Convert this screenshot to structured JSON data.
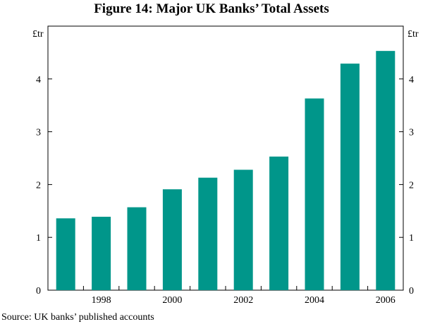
{
  "title": "Figure 14: Major UK Banks’ Total Assets",
  "source": "Source: UK banks’ published accounts",
  "colors": {
    "bar": "#00968a",
    "axis": "#000000"
  },
  "chart_data": {
    "type": "bar",
    "title": "Figure 14: Major UK Banks’ Total Assets",
    "ylabel_left": "£tr",
    "ylabel_right": "£tr",
    "ylim": [
      0,
      5
    ],
    "yticks": [
      0,
      1,
      2,
      3,
      4
    ],
    "x": [
      1997,
      1998,
      1999,
      2000,
      2001,
      2002,
      2003,
      2004,
      2005,
      2006
    ],
    "xtick_labels": [
      "",
      "1998",
      "",
      "2000",
      "",
      "2002",
      "",
      "2004",
      "",
      "2006"
    ],
    "values": [
      1.36,
      1.39,
      1.57,
      1.91,
      2.13,
      2.28,
      2.53,
      3.63,
      4.29,
      4.53
    ],
    "grid": false,
    "legend": "none"
  }
}
